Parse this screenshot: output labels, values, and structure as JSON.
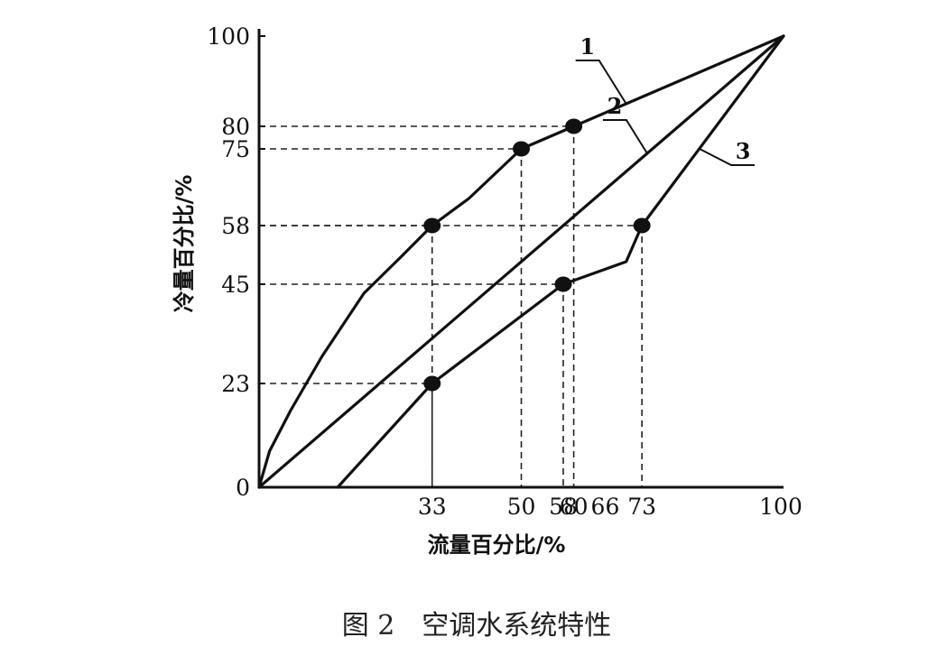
{
  "chart_data": {
    "type": "line",
    "title": "",
    "xlabel": "流量百分比/%",
    "ylabel": "冷量百分比/%",
    "xlim": [
      0,
      100
    ],
    "ylim": [
      0,
      100
    ],
    "grid": false,
    "x_ticks": [
      {
        "label": "33",
        "value": 33
      },
      {
        "label": "50",
        "value": 50
      },
      {
        "label": "58",
        "value": 58
      },
      {
        "label": "60",
        "value": 60
      },
      {
        "label": "66",
        "value": 66
      },
      {
        "label": "73",
        "value": 73
      },
      {
        "label": "100",
        "value": 100
      }
    ],
    "y_ticks": [
      {
        "label": "0",
        "value": 0
      },
      {
        "label": "23",
        "value": 23
      },
      {
        "label": "45",
        "value": 45
      },
      {
        "label": "58",
        "value": 58
      },
      {
        "label": "75",
        "value": 75
      },
      {
        "label": "80",
        "value": 80
      },
      {
        "label": "100",
        "value": 100
      }
    ],
    "series": [
      {
        "name": "1",
        "points": [
          [
            0,
            0
          ],
          [
            2,
            8
          ],
          [
            6,
            17
          ],
          [
            12,
            29
          ],
          [
            20,
            43
          ],
          [
            27,
            51
          ],
          [
            33,
            58
          ],
          [
            40,
            64
          ],
          [
            50,
            75
          ],
          [
            60,
            80
          ],
          [
            80,
            90
          ],
          [
            100,
            100
          ]
        ],
        "markers": [
          [
            33,
            58
          ],
          [
            50,
            75
          ],
          [
            60,
            80
          ]
        ]
      },
      {
        "name": "2",
        "points": [
          [
            0,
            0
          ],
          [
            100,
            100
          ]
        ],
        "markers": []
      },
      {
        "name": "3",
        "points": [
          [
            15,
            0
          ],
          [
            33,
            23
          ],
          [
            58,
            45
          ],
          [
            70,
            50
          ],
          [
            73,
            58
          ],
          [
            100,
            100
          ]
        ],
        "markers": [
          [
            33,
            23
          ],
          [
            58,
            45
          ],
          [
            73,
            58
          ]
        ]
      }
    ],
    "guides": [
      {
        "x": 33,
        "y": 58
      },
      {
        "x": 33,
        "y": 23
      },
      {
        "x": 50,
        "y": 75
      },
      {
        "x": 60,
        "y": 80
      },
      {
        "x": 58,
        "y": 45
      },
      {
        "x": 73,
        "y": 58
      }
    ]
  },
  "caption": {
    "text": "图 2　空调水系统特性"
  }
}
